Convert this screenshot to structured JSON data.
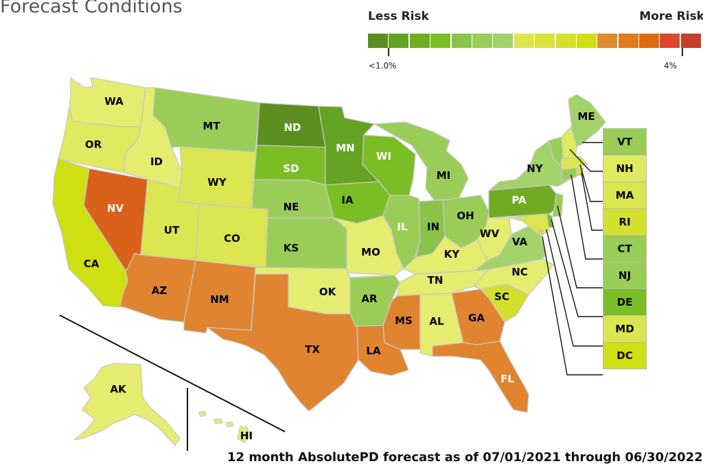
{
  "title": "Forecast Conditions",
  "legend": {
    "less_label": "Less Risk",
    "more_label": "More Risk",
    "min_tick": "<1.0%",
    "max_tick": "4%",
    "colors": [
      "#5a8f1f",
      "#64a322",
      "#70ac23",
      "#7bbd25",
      "#8bc34a",
      "#9acd57",
      "#a3d26a",
      "#dde650",
      "#d8e33c",
      "#d4e02e",
      "#d0de14",
      "#e08a30",
      "#de7a1f",
      "#dc6a10",
      "#de4530",
      "#c44028"
    ]
  },
  "states": {
    "WA": {
      "label": "WA",
      "color": "#e5ec6f",
      "text": "#000000"
    },
    "OR": {
      "label": "OR",
      "color": "#e0e95f",
      "text": "#000000"
    },
    "CA": {
      "label": "CA",
      "color": "#d0de14",
      "text": "#000000"
    },
    "ID": {
      "label": "ID",
      "color": "#e5ec6f",
      "text": "#000000"
    },
    "NV": {
      "label": "NV",
      "color": "#d9621a",
      "text": "#ffffff"
    },
    "AZ": {
      "label": "AZ",
      "color": "#e0842f",
      "text": "#000000"
    },
    "UT": {
      "label": "UT",
      "color": "#dae54f",
      "text": "#000000"
    },
    "MT": {
      "label": "MT",
      "color": "#9acd57",
      "text": "#000000"
    },
    "WY": {
      "label": "WY",
      "color": "#dae54f",
      "text": "#000000"
    },
    "CO": {
      "label": "CO",
      "color": "#dae54f",
      "text": "#000000"
    },
    "NM": {
      "label": "NM",
      "color": "#e0842f",
      "text": "#000000"
    },
    "ND": {
      "label": "ND",
      "color": "#5c8f1f",
      "text": "#ffffff"
    },
    "SD": {
      "label": "SD",
      "color": "#7bbd25",
      "text": "#ffffff"
    },
    "NE": {
      "label": "NE",
      "color": "#9acd57",
      "text": "#000000"
    },
    "KS": {
      "label": "KS",
      "color": "#9acd57",
      "text": "#000000"
    },
    "OK": {
      "label": "OK",
      "color": "#e5ec6f",
      "text": "#000000"
    },
    "TX": {
      "label": "TX",
      "color": "#e0842f",
      "text": "#000000"
    },
    "MN": {
      "label": "MN",
      "color": "#64a322",
      "text": "#ffffff"
    },
    "IA": {
      "label": "IA",
      "color": "#7bbd25",
      "text": "#000000"
    },
    "MO": {
      "label": "MO",
      "color": "#e5ec6f",
      "text": "#000000"
    },
    "AR": {
      "label": "AR",
      "color": "#9acd57",
      "text": "#000000"
    },
    "LA": {
      "label": "LA",
      "color": "#e0842f",
      "text": "#000000"
    },
    "WI": {
      "label": "WI",
      "color": "#7bbd25",
      "text": "#ffffff"
    },
    "IL": {
      "label": "IL",
      "color": "#9acd57",
      "text": "#ffffff"
    },
    "MI": {
      "label": "MI",
      "color": "#9acd57",
      "text": "#000000"
    },
    "IN": {
      "label": "IN",
      "color": "#8bc34a",
      "text": "#000000"
    },
    "OH": {
      "label": "OH",
      "color": "#9acd57",
      "text": "#000000"
    },
    "KY": {
      "label": "KY",
      "color": "#e5ec6f",
      "text": "#000000"
    },
    "TN": {
      "label": "TN",
      "color": "#e5ec6f",
      "text": "#000000"
    },
    "MS": {
      "label": "MS",
      "color": "#e0842f",
      "text": "#000000"
    },
    "AL": {
      "label": "AL",
      "color": "#e5ec6f",
      "text": "#000000"
    },
    "GA": {
      "label": "GA",
      "color": "#e0842f",
      "text": "#000000"
    },
    "FL": {
      "label": "FL",
      "color": "#e0842f",
      "text": "#ffffff"
    },
    "SC": {
      "label": "SC",
      "color": "#d4e02e",
      "text": "#000000"
    },
    "NC": {
      "label": "NC",
      "color": "#e5ec6f",
      "text": "#000000"
    },
    "VA": {
      "label": "VA",
      "color": "#a3d26a",
      "text": "#000000"
    },
    "WV": {
      "label": "WV",
      "color": "#e5ec6f",
      "text": "#000000"
    },
    "PA": {
      "label": "PA",
      "color": "#70ac23",
      "text": "#ffffff"
    },
    "NY": {
      "label": "NY",
      "color": "#a3d26a",
      "text": "#000000"
    },
    "ME": {
      "label": "ME",
      "color": "#a3d26a",
      "text": "#000000"
    },
    "AK": {
      "label": "AK",
      "color": "#e5ec6f",
      "text": "#000000"
    },
    "HI": {
      "label": "HI",
      "color": "#e5ec6f",
      "text": "#000000"
    }
  },
  "small_states": [
    {
      "label": "VT",
      "color": "#9acd57"
    },
    {
      "label": "NH",
      "color": "#e0e95f"
    },
    {
      "label": "MA",
      "color": "#dae54f"
    },
    {
      "label": "RI",
      "color": "#d4e02e"
    },
    {
      "label": "CT",
      "color": "#9acd57"
    },
    {
      "label": "NJ",
      "color": "#9acd57"
    },
    {
      "label": "DE",
      "color": "#7bbd25"
    },
    {
      "label": "MD",
      "color": "#dae54f"
    },
    {
      "label": "DC",
      "color": "#d0de14"
    }
  ],
  "footer": "12 month AbsolutePD forecast as of 07/01/2021 through 06/30/2022"
}
